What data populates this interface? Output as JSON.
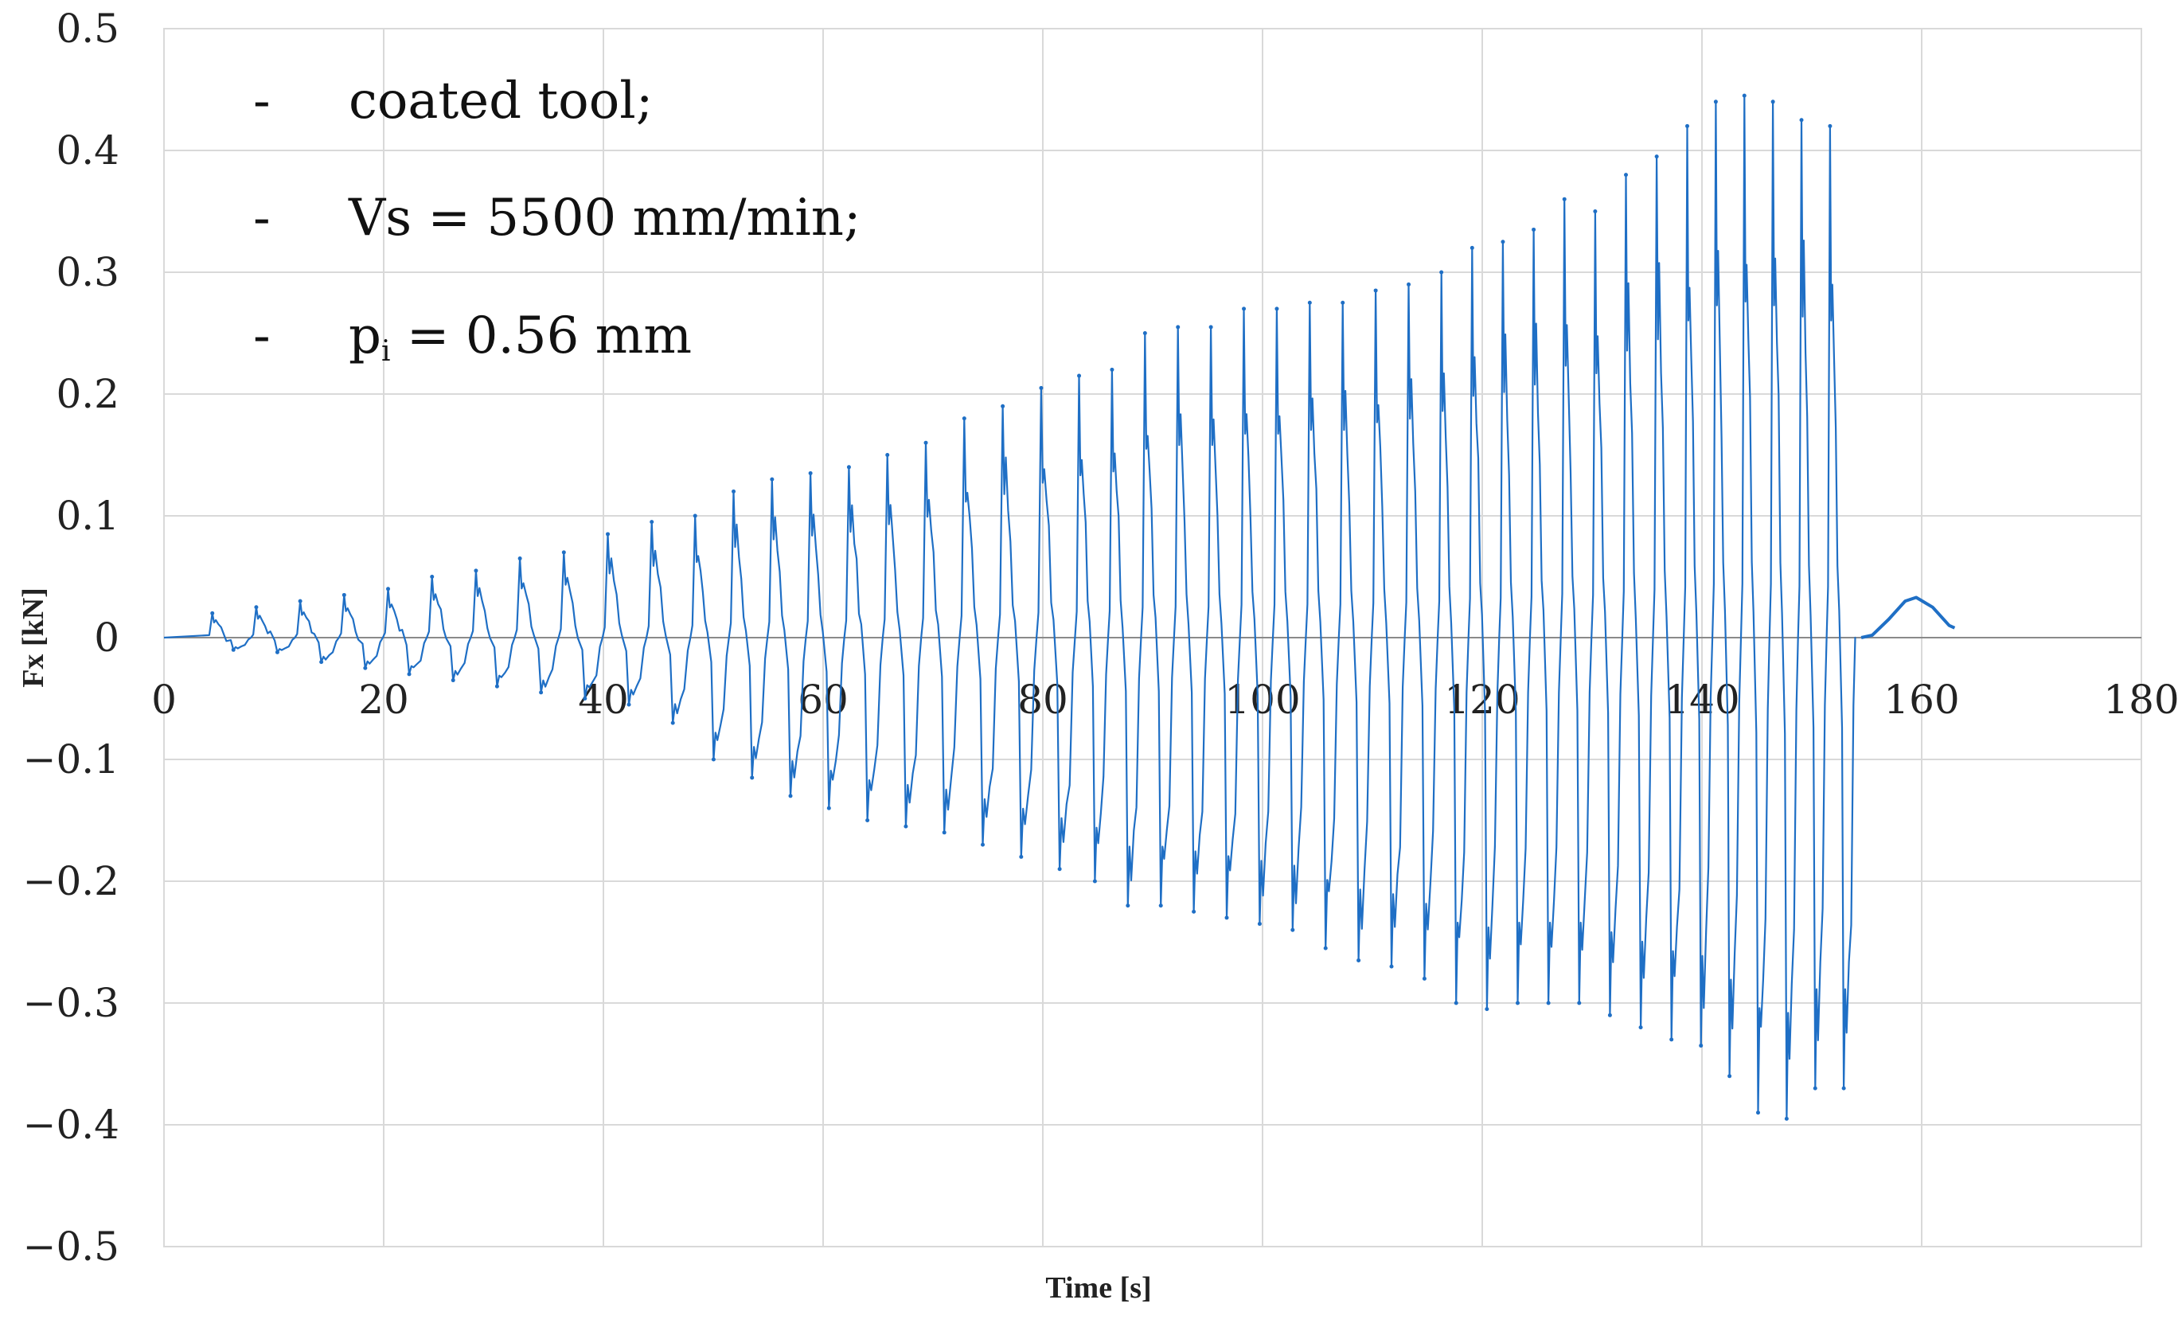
{
  "chart_data": {
    "type": "line",
    "title": "",
    "xlabel": "Time [s]",
    "ylabel": "Fx [kN]",
    "xlim": [
      0,
      180
    ],
    "ylim": [
      -0.5,
      0.5
    ],
    "x_ticks": [
      0,
      20,
      40,
      60,
      80,
      100,
      120,
      140,
      160,
      180
    ],
    "x_tick_labels": [
      "0",
      "20",
      "40",
      "60",
      "80",
      "100",
      "120",
      "140",
      "160",
      "180"
    ],
    "y_ticks": [
      0.5,
      0.4,
      0.3,
      0.2,
      0.1,
      0,
      -0.1,
      -0.2,
      -0.3,
      -0.4,
      -0.5
    ],
    "y_tick_labels": [
      "0.5",
      "0.4",
      "0.3",
      "0.2",
      "0.1",
      "0",
      "−0.1",
      "−0.2",
      "−0.3",
      "−0.4",
      "−0.5"
    ],
    "grid": true,
    "legend": [
      {
        "bullet": "-",
        "text": "coated tool;"
      },
      {
        "bullet": "-",
        "text": "Vs = 5500 mm/min;"
      },
      {
        "bullet": "-",
        "text_main": "p",
        "text_sub": "i",
        "text_rest": " = 0.56 mm"
      }
    ],
    "series": [
      {
        "name": "Fx",
        "color": "#1f6fc5",
        "cycle_start_s": [
          4.0,
          8.0,
          12.0,
          16.0,
          20.0,
          24.0,
          28.0,
          32.0,
          36.0,
          40.0,
          44.0,
          48.0,
          51.5,
          55.0,
          58.5,
          62.0,
          65.5,
          69.0,
          72.5,
          76.0,
          79.5,
          83.0,
          86.0,
          89.0,
          92.0,
          95.0,
          98.0,
          101.0,
          104.0,
          107.0,
          110.0,
          113.0,
          116.0,
          118.8,
          121.6,
          124.4,
          127.2,
          130.0,
          132.8,
          135.6,
          138.4,
          141.0,
          143.6,
          146.2,
          148.8,
          151.4
        ],
        "cycle_peak_max_kN": [
          0.02,
          0.025,
          0.03,
          0.035,
          0.04,
          0.05,
          0.055,
          0.065,
          0.07,
          0.085,
          0.095,
          0.1,
          0.12,
          0.13,
          0.135,
          0.14,
          0.15,
          0.16,
          0.18,
          0.19,
          0.205,
          0.215,
          0.22,
          0.25,
          0.255,
          0.255,
          0.27,
          0.27,
          0.275,
          0.275,
          0.285,
          0.29,
          0.3,
          0.32,
          0.325,
          0.335,
          0.36,
          0.35,
          0.38,
          0.395,
          0.42,
          0.44,
          0.445,
          0.44,
          0.425,
          0.42
        ],
        "cycle_peak_min_kN": [
          -0.01,
          -0.012,
          -0.02,
          -0.025,
          -0.03,
          -0.035,
          -0.04,
          -0.045,
          -0.05,
          -0.055,
          -0.07,
          -0.1,
          -0.115,
          -0.13,
          -0.14,
          -0.15,
          -0.155,
          -0.16,
          -0.17,
          -0.18,
          -0.19,
          -0.2,
          -0.22,
          -0.22,
          -0.225,
          -0.23,
          -0.235,
          -0.24,
          -0.255,
          -0.265,
          -0.27,
          -0.28,
          -0.3,
          -0.305,
          -0.3,
          -0.3,
          -0.3,
          -0.31,
          -0.32,
          -0.33,
          -0.335,
          -0.36,
          -0.39,
          -0.395,
          -0.37,
          -0.37
        ],
        "end_of_cutting_s": 154.0,
        "tail": {
          "x": [
            154.5,
            155.5,
            157.0,
            158.5,
            159.5,
            161.0,
            162.5,
            163.0
          ],
          "y": [
            0.0,
            0.002,
            0.015,
            0.03,
            0.033,
            0.025,
            0.01,
            0.008
          ]
        }
      }
    ]
  }
}
